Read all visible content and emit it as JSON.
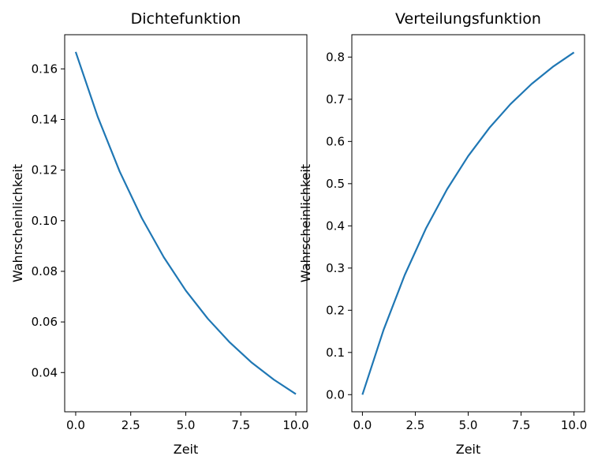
{
  "chart_data": [
    {
      "type": "line",
      "title": "Dichtefunktion",
      "xlabel": "Zeit",
      "ylabel": "Wahrscheinlichkeit",
      "xlim": [
        -0.5,
        10.5
      ],
      "ylim": [
        0.0245,
        0.1735
      ],
      "xticks": [
        0,
        2.5,
        5,
        7.5,
        10
      ],
      "xtick_labels": [
        "0.0",
        "2.5",
        "5.0",
        "7.5",
        "10.0"
      ],
      "yticks": [
        0.04,
        0.06,
        0.08,
        0.1,
        0.12,
        0.14,
        0.16
      ],
      "ytick_labels": [
        "0.04",
        "0.06",
        "0.08",
        "0.10",
        "0.12",
        "0.14",
        "0.16"
      ],
      "grid": false,
      "series": [
        {
          "color": "#1f77b4",
          "x": [
            0,
            1,
            2,
            3,
            4,
            5,
            6,
            7,
            8,
            9,
            10
          ],
          "y": [
            0.1667,
            0.1411,
            0.1194,
            0.1011,
            0.0856,
            0.0724,
            0.0613,
            0.0519,
            0.0439,
            0.0372,
            0.0315
          ]
        }
      ]
    },
    {
      "type": "line",
      "title": "Verteilungsfunktion",
      "xlabel": "Zeit",
      "ylabel": "Wahrscheinlichkeit",
      "xlim": [
        -0.5,
        10.5
      ],
      "ylim": [
        -0.0406,
        0.853
      ],
      "xticks": [
        0,
        2.5,
        5,
        7.5,
        10
      ],
      "xtick_labels": [
        "0.0",
        "2.5",
        "5.0",
        "7.5",
        "10.0"
      ],
      "yticks": [
        0.0,
        0.1,
        0.2,
        0.3,
        0.4,
        0.5,
        0.6,
        0.7,
        0.8
      ],
      "ytick_labels": [
        "0.0",
        "0.1",
        "0.2",
        "0.3",
        "0.4",
        "0.5",
        "0.6",
        "0.7",
        "0.8"
      ],
      "grid": false,
      "series": [
        {
          "color": "#1f77b4",
          "x": [
            0,
            1,
            2,
            3,
            4,
            5,
            6,
            7,
            8,
            9,
            10
          ],
          "y": [
            0.0,
            0.1535,
            0.2835,
            0.3935,
            0.4866,
            0.5654,
            0.6321,
            0.6886,
            0.7364,
            0.7769,
            0.8111
          ]
        }
      ]
    }
  ]
}
